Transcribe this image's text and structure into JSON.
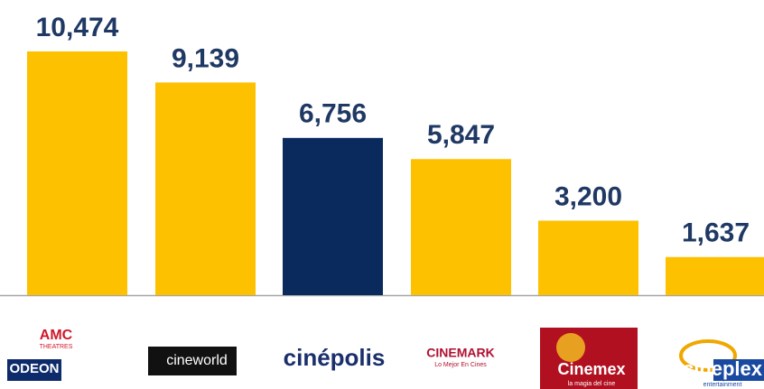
{
  "chart_data": {
    "type": "bar",
    "categories": [
      "AMC",
      "cineworld",
      "cinépolis",
      "CINEMARK",
      "Cinemex",
      "cineplex"
    ],
    "logo_subtexts": [
      "THEATRES",
      null,
      null,
      "Lo Mejor En Cines",
      "la magia del cine",
      "entertainment"
    ],
    "extra_logo": "ODEON",
    "values": [
      10474,
      9139,
      6756,
      5847,
      3200,
      1637
    ],
    "value_labels": [
      "10,474",
      "9,139",
      "6,756",
      "5,847",
      "3,200",
      "1,637"
    ],
    "colors": [
      "#FDC100",
      "#FDC100",
      "#0A2A5E",
      "#FDC100",
      "#FDC100",
      "#FDC100"
    ],
    "ylim": [
      0,
      11000
    ]
  }
}
